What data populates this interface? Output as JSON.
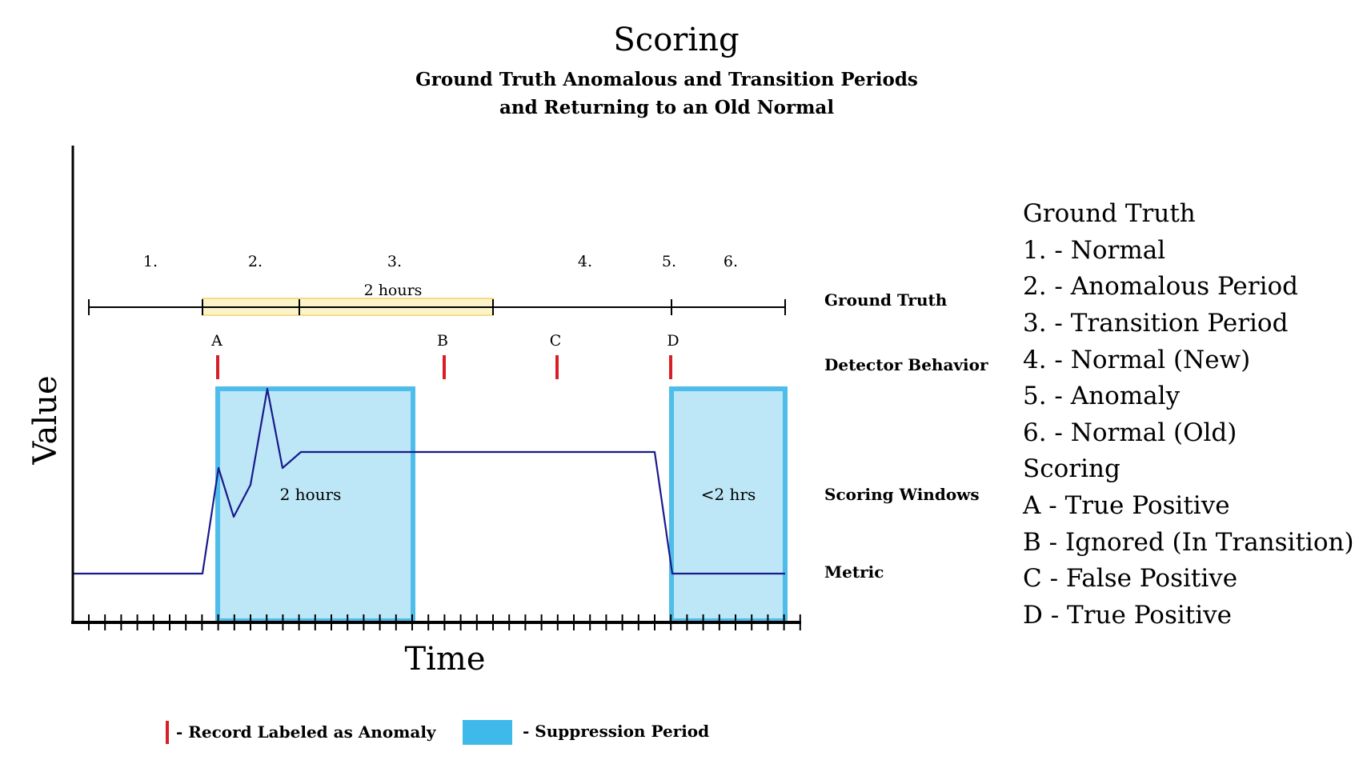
{
  "title": "Scoring",
  "subtitle_lines": [
    "Ground Truth Anomalous and Transition Periods",
    "and Returning to an Old Normal"
  ],
  "axes": {
    "x_label": "Time",
    "y_label": "Value"
  },
  "period_numbers": [
    "1.",
    "2.",
    "3.",
    "4.",
    "5.",
    "6."
  ],
  "ground_truth_bar_label": "2 hours",
  "detector_marks": [
    "A",
    "B",
    "C",
    "D"
  ],
  "window_labels": [
    "2 hours",
    "<2 hrs"
  ],
  "row_labels": {
    "ground_truth": "Ground Truth",
    "detector_behavior": "Detector Behavior",
    "scoring_windows": "Scoring Windows",
    "metric": "Metric"
  },
  "legend": {
    "ground_truth_heading": "Ground Truth",
    "ground_truth_items": [
      "1. - Normal",
      "2. - Anomalous Period",
      "3. - Transition Period",
      "4. - Normal (New)",
      "5. - Anomaly",
      "6. - Normal (Old)"
    ],
    "scoring_heading": "Scoring",
    "scoring_items": [
      "A - True Positive",
      "B - Ignored (In Transition)",
      "C - False Positive",
      "D - True Positive"
    ]
  },
  "key": {
    "anomaly_record": "- Record Labeled as Anomaly",
    "suppression": "- Suppression Period"
  },
  "colors": {
    "anomaly_mark": "#d81f26",
    "suppression_fill": "#bde6f6",
    "suppression_stroke": "#4ebde9",
    "suppression_key": "#3fb8ea",
    "metric_line": "#1a1a8c",
    "gt_highlight_fill": "#fdf3c8",
    "gt_highlight_stroke": "#f2dc8a",
    "axis": "#000000"
  }
}
